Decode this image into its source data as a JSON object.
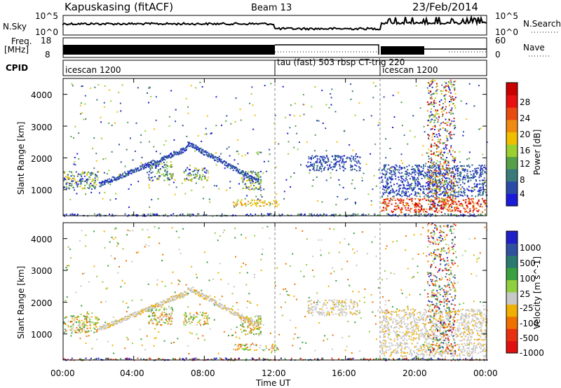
{
  "header": {
    "radar": "Kapuskasing (fitACF)",
    "beam": "Beam 13",
    "date": "23/Feb/2014"
  },
  "panels": {
    "nsky_label": "N.Sky",
    "nsky_ticks": [
      "10^5",
      "10^0"
    ],
    "nsearch_label": "N.Search",
    "nsearch_ticks": [
      "10^5",
      "10^0"
    ],
    "freq_label_1": "Freq.",
    "freq_label_2": "[MHz]",
    "freq_ticks": [
      "18",
      "8"
    ],
    "nave_label": "Nave",
    "nave_ticks": [
      "60",
      "0"
    ],
    "cpid_label": "CPID",
    "cpid_segments": [
      {
        "label": "icescan 1200",
        "start": 0,
        "end": 12
      },
      {
        "label": "tau (fast) 503 rbsp CT-trig 220",
        "start": 12,
        "end": 18
      },
      {
        "label": "icescan 1200",
        "start": 18,
        "end": 24
      }
    ]
  },
  "axes": {
    "ylabel": "Slant Range [km]",
    "xlabel": "Time UT",
    "y_ticks": [
      "4000",
      "3000",
      "2000",
      "1000"
    ],
    "x_ticks": [
      "00:00",
      "04:00",
      "08:00",
      "12:00",
      "16:00",
      "20:00",
      "00:00"
    ]
  },
  "colorbars": {
    "power": {
      "label": "Power [dB]",
      "ticks": [
        "28",
        "24",
        "20",
        "16",
        "12",
        "8",
        "4"
      ],
      "colors": [
        "#1a1ad8",
        "#2a4aa8",
        "#3a7a7a",
        "#56a04a",
        "#9ad030",
        "#f0c000",
        "#f08a10",
        "#e84a10",
        "#e81010",
        "#c80000"
      ]
    },
    "velocity": {
      "label": "Velocity [m s^-1]",
      "ticks": [
        "1000",
        "500",
        "100",
        "25",
        "-25",
        "-100",
        "-500",
        "-1000"
      ],
      "colors": [
        "#2020c8",
        "#3050a0",
        "#2a7a70",
        "#3aa040",
        "#90d040",
        "#c8c8c8",
        "#f0b000",
        "#f07000",
        "#e83010",
        "#e01010"
      ]
    }
  },
  "chart_data": {
    "type": "heatmap",
    "title": "Kapuskasing (fitACF)",
    "xlabel": "Time UT",
    "ylabel": "Slant Range [km]",
    "xlim": [
      0,
      24
    ],
    "ylim": [
      180,
      4500
    ],
    "regions_power": [
      {
        "t0": 0,
        "t1": 2.0,
        "r0": 1050,
        "r1": 1600,
        "level": "mixed"
      },
      {
        "t0": 4.8,
        "t1": 6.2,
        "r0": 1300,
        "r1": 1900,
        "level": "mixed"
      },
      {
        "t0": 6.8,
        "t1": 8.2,
        "r0": 1300,
        "r1": 1700,
        "level": "mixed"
      },
      {
        "t0": 10.0,
        "t1": 11.2,
        "r0": 1000,
        "r1": 1600,
        "level": "mixed"
      },
      {
        "t0": 9.6,
        "t1": 12.2,
        "r0": 500,
        "r1": 700,
        "level": "high"
      },
      {
        "t0": 13.8,
        "t1": 16.8,
        "r0": 1600,
        "r1": 2100,
        "level": "low"
      },
      {
        "t0": 18.0,
        "t1": 24.0,
        "r0": 800,
        "r1": 1800,
        "level": "low"
      },
      {
        "t0": 18.0,
        "t1": 24.0,
        "r0": 300,
        "r1": 750,
        "level": "very-high"
      }
    ]
  }
}
